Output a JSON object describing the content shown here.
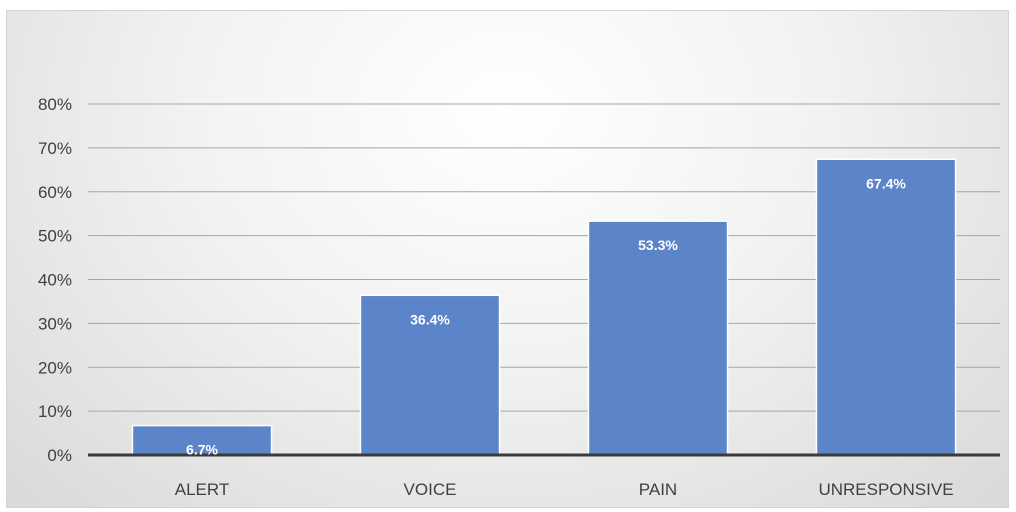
{
  "chart_data": {
    "type": "bar",
    "categories": [
      "ALERT",
      "VOICE",
      "PAIN",
      "UNRESPONSIVE"
    ],
    "values": [
      6.7,
      36.4,
      53.3,
      67.4
    ],
    "data_labels": [
      "6.7%",
      "36.4%",
      "53.3%",
      "67.4%"
    ],
    "ylim": [
      0,
      80
    ],
    "yticks": [
      0,
      10,
      20,
      30,
      40,
      50,
      60,
      70,
      80
    ],
    "ytick_labels": [
      "0%",
      "10%",
      "20%",
      "30%",
      "40%",
      "50%",
      "60%",
      "70%",
      "80%"
    ],
    "grid": true,
    "legend": "none",
    "bar_color": "#5b84c9",
    "bar_edge_color": "#ffffff",
    "axis_color": "#3a3a3a",
    "grid_color": "#a6a6a6"
  }
}
